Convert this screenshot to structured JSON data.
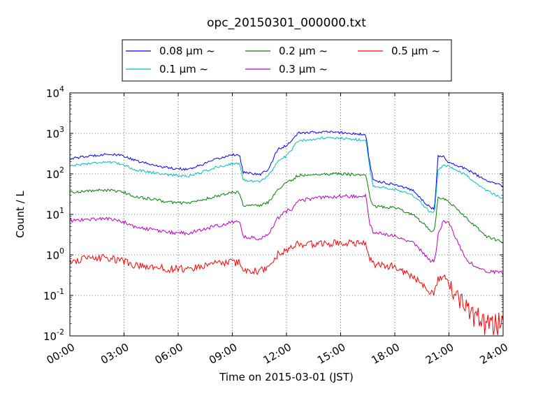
{
  "chart_data": {
    "type": "line",
    "title": "opc_20150301_000000.txt",
    "xlabel": "Time on 2015-03-01 (JST)",
    "ylabel": "Count / L",
    "yscale": "log",
    "xlim": [
      0,
      24
    ],
    "ylim": [
      0.01,
      10000
    ],
    "grid": true,
    "legend_position": "top-center",
    "x_ticks": [
      {
        "value": 0,
        "label": "00:00"
      },
      {
        "value": 3,
        "label": "03:00"
      },
      {
        "value": 6,
        "label": "06:00"
      },
      {
        "value": 9,
        "label": "09:00"
      },
      {
        "value": 12,
        "label": "12:00"
      },
      {
        "value": 15,
        "label": "15:00"
      },
      {
        "value": 18,
        "label": "18:00"
      },
      {
        "value": 21,
        "label": "21:00"
      },
      {
        "value": 24,
        "label": "24:00"
      }
    ],
    "y_ticks": [
      {
        "value": 0.01,
        "base": "10",
        "exp": "-2"
      },
      {
        "value": 0.1,
        "base": "10",
        "exp": "-1"
      },
      {
        "value": 1,
        "base": "10",
        "exp": "0"
      },
      {
        "value": 10,
        "base": "10",
        "exp": "1"
      },
      {
        "value": 100,
        "base": "10",
        "exp": "2"
      },
      {
        "value": 1000,
        "base": "10",
        "exp": "3"
      },
      {
        "value": 10000,
        "base": "10",
        "exp": "4"
      }
    ],
    "series": [
      {
        "name": "0.08 μm ~",
        "color": "#0000ff",
        "points": [
          [
            0,
            240
          ],
          [
            1,
            270
          ],
          [
            2,
            310
          ],
          [
            3,
            280
          ],
          [
            3.5,
            220
          ],
          [
            4.5,
            170
          ],
          [
            5.5,
            140
          ],
          [
            6.5,
            130
          ],
          [
            7,
            150
          ],
          [
            8,
            220
          ],
          [
            9,
            300
          ],
          [
            9.4,
            290
          ],
          [
            9.6,
            110
          ],
          [
            10.5,
            95
          ],
          [
            11,
            130
          ],
          [
            11.5,
            400
          ],
          [
            12,
            500
          ],
          [
            12.3,
            650
          ],
          [
            12.6,
            1000
          ],
          [
            14,
            1100
          ],
          [
            15,
            1050
          ],
          [
            16,
            960
          ],
          [
            16.4,
            900
          ],
          [
            16.6,
            200
          ],
          [
            16.8,
            70
          ],
          [
            17.5,
            60
          ],
          [
            18,
            55
          ],
          [
            19,
            40
          ],
          [
            20,
            14
          ],
          [
            20.2,
            14
          ],
          [
            20.4,
            270
          ],
          [
            20.7,
            270
          ],
          [
            21,
            190
          ],
          [
            22,
            130
          ],
          [
            23,
            70
          ],
          [
            24,
            50
          ]
        ]
      },
      {
        "name": "0.1 μm ~",
        "color": "#00bfbf",
        "points": [
          [
            0,
            160
          ],
          [
            1,
            180
          ],
          [
            2,
            200
          ],
          [
            3,
            170
          ],
          [
            3.5,
            130
          ],
          [
            4.5,
            110
          ],
          [
            5.5,
            95
          ],
          [
            6.5,
            88
          ],
          [
            7,
            100
          ],
          [
            8,
            140
          ],
          [
            9,
            180
          ],
          [
            9.4,
            180
          ],
          [
            9.6,
            70
          ],
          [
            10.5,
            65
          ],
          [
            11,
            90
          ],
          [
            11.5,
            200
          ],
          [
            12,
            280
          ],
          [
            12.3,
            400
          ],
          [
            12.6,
            650
          ],
          [
            14,
            770
          ],
          [
            15,
            750
          ],
          [
            16,
            700
          ],
          [
            16.4,
            650
          ],
          [
            16.6,
            150
          ],
          [
            16.8,
            50
          ],
          [
            17.5,
            45
          ],
          [
            18,
            42
          ],
          [
            19,
            30
          ],
          [
            20,
            11
          ],
          [
            20.2,
            11
          ],
          [
            20.4,
            120
          ],
          [
            20.7,
            160
          ],
          [
            21,
            150
          ],
          [
            22,
            90
          ],
          [
            23,
            40
          ],
          [
            24,
            25
          ]
        ]
      },
      {
        "name": "0.2 μm ~",
        "color": "#008000",
        "points": [
          [
            0,
            35
          ],
          [
            1,
            38
          ],
          [
            2,
            40
          ],
          [
            3,
            35
          ],
          [
            3.5,
            28
          ],
          [
            4.5,
            24
          ],
          [
            5.5,
            20
          ],
          [
            6.5,
            19
          ],
          [
            7,
            21
          ],
          [
            8,
            27
          ],
          [
            9,
            35
          ],
          [
            9.4,
            35
          ],
          [
            9.6,
            17
          ],
          [
            10.5,
            16
          ],
          [
            11,
            20
          ],
          [
            11.5,
            40
          ],
          [
            12,
            60
          ],
          [
            12.3,
            70
          ],
          [
            12.6,
            90
          ],
          [
            14,
            100
          ],
          [
            15,
            100
          ],
          [
            16,
            95
          ],
          [
            16.4,
            95
          ],
          [
            16.6,
            30
          ],
          [
            16.8,
            16
          ],
          [
            17.5,
            15
          ],
          [
            18,
            15
          ],
          [
            19,
            10
          ],
          [
            20,
            4
          ],
          [
            20.2,
            4
          ],
          [
            20.4,
            25
          ],
          [
            20.7,
            25
          ],
          [
            21,
            20
          ],
          [
            22,
            8
          ],
          [
            23,
            3
          ],
          [
            24,
            2
          ]
        ]
      },
      {
        "name": "0.3 μm ~",
        "color": "#bf00bf",
        "points": [
          [
            0,
            7
          ],
          [
            1,
            7.5
          ],
          [
            2,
            8
          ],
          [
            3,
            6.5
          ],
          [
            3.5,
            5
          ],
          [
            4.5,
            4.2
          ],
          [
            5.5,
            3.6
          ],
          [
            6.5,
            3.4
          ],
          [
            7,
            3.9
          ],
          [
            8,
            5
          ],
          [
            9,
            6.5
          ],
          [
            9.4,
            6.5
          ],
          [
            9.6,
            2.8
          ],
          [
            10.5,
            2.5
          ],
          [
            11,
            3.3
          ],
          [
            11.5,
            8
          ],
          [
            12,
            12
          ],
          [
            12.3,
            14
          ],
          [
            12.6,
            22
          ],
          [
            14,
            26
          ],
          [
            15,
            28
          ],
          [
            16,
            28
          ],
          [
            16.4,
            28
          ],
          [
            16.6,
            6
          ],
          [
            16.8,
            3.5
          ],
          [
            17.5,
            3.2
          ],
          [
            18,
            3.1
          ],
          [
            19,
            2
          ],
          [
            20,
            0.7
          ],
          [
            20.2,
            0.7
          ],
          [
            20.4,
            3
          ],
          [
            20.7,
            7
          ],
          [
            21,
            6
          ],
          [
            22,
            0.7
          ],
          [
            23,
            0.4
          ],
          [
            24,
            0.35
          ]
        ]
      },
      {
        "name": "0.5 μm ~",
        "color": "#ff0000",
        "points": [
          [
            0,
            0.7
          ],
          [
            1,
            0.8
          ],
          [
            2,
            0.85
          ],
          [
            3,
            0.7
          ],
          [
            3.5,
            0.55
          ],
          [
            4.5,
            0.5
          ],
          [
            5.5,
            0.45
          ],
          [
            6.5,
            0.45
          ],
          [
            7,
            0.5
          ],
          [
            8,
            0.6
          ],
          [
            9,
            0.65
          ],
          [
            9.4,
            0.65
          ],
          [
            9.6,
            0.42
          ],
          [
            10.5,
            0.4
          ],
          [
            11,
            0.5
          ],
          [
            11.5,
            1
          ],
          [
            12,
            1.3
          ],
          [
            12.3,
            1.5
          ],
          [
            12.6,
            1.8
          ],
          [
            14,
            1.9
          ],
          [
            15,
            2
          ],
          [
            16,
            2
          ],
          [
            16.4,
            2
          ],
          [
            16.6,
            0.8
          ],
          [
            16.8,
            0.6
          ],
          [
            17.5,
            0.55
          ],
          [
            18,
            0.5
          ],
          [
            19,
            0.3
          ],
          [
            20,
            0.12
          ],
          [
            20.2,
            0.12
          ],
          [
            20.4,
            0.25
          ],
          [
            20.7,
            0.3
          ],
          [
            21,
            0.2
          ],
          [
            22,
            0.04
          ],
          [
            23,
            0.02
          ],
          [
            24,
            0.02
          ]
        ]
      }
    ]
  }
}
